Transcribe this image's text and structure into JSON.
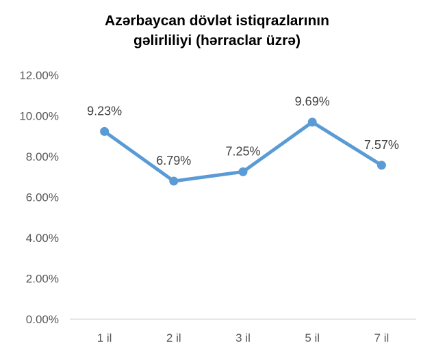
{
  "chart_data": {
    "type": "line",
    "title_lines": [
      "Azərbaycan dövlət istiqrazlarının",
      "gəlirliliyi (hərraclar üzrə)"
    ],
    "categories": [
      "1 il",
      "2 il",
      "3 il",
      "5 il",
      "7 il"
    ],
    "series": [
      {
        "values": [
          9.23,
          6.79,
          7.25,
          9.69,
          7.57
        ],
        "labels": [
          "9.23%",
          "6.79%",
          "7.25%",
          "9.69%",
          "7.57%"
        ],
        "color": "#5B9BD5"
      }
    ],
    "y_ticks": [
      "0.00%",
      "2.00%",
      "4.00%",
      "6.00%",
      "8.00%",
      "10.00%",
      "12.00%"
    ],
    "ylim": [
      0,
      12
    ],
    "grid": false,
    "legend": "none",
    "axis_color": "#D9D9D9"
  }
}
